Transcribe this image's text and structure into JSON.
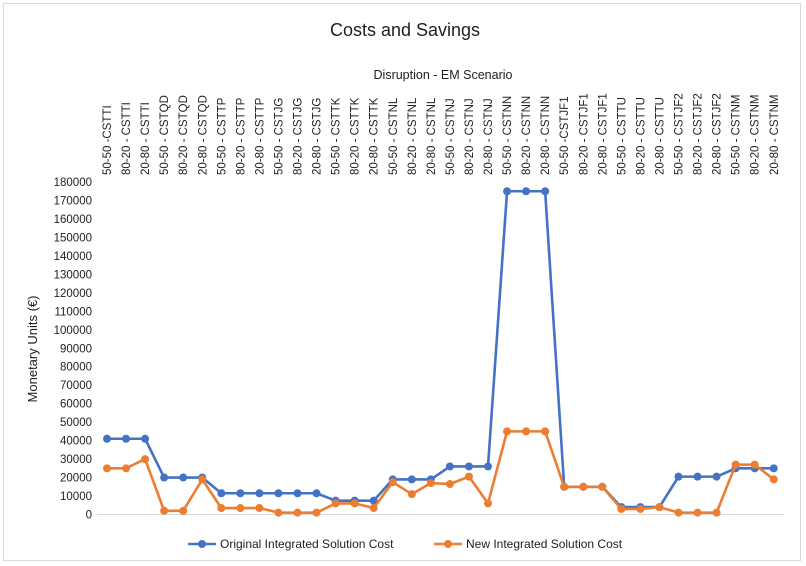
{
  "chart_data": {
    "type": "line",
    "title": "Costs and Savings",
    "subtitle": "Disruption - EM Scenario",
    "xlabel": "",
    "ylabel": "Monetary Units (€)",
    "ylim": [
      0,
      180000
    ],
    "ytick_step": 10000,
    "grid": false,
    "legend_position": "bottom",
    "categories": [
      "50-50 -CSTTI",
      "80-20 - CSTTI",
      "20-80 - CSTTI",
      "50-50 - CSTQD",
      "80-20 - CSTQD",
      "20-80 - CSTQD",
      "50-50 - CSTTP",
      "80-20 - CSTTP",
      "20-80 - CSTTP",
      "50-50 - CSTJG",
      "80-20 - CSTJG",
      "20-80 - CSTJG",
      "50-50 - CSTTK",
      "80-20 - CSTTK",
      "20-80 - CSTTK",
      "50-50 - CSTNL",
      "80-20 - CSTNL",
      "20-80 - CSTNL",
      "50-50 - CSTNJ",
      "80-20 - CSTNJ",
      "20-80 - CSTNJ",
      "50-50 - CSTNN",
      "80-20 - CSTNN",
      "20-80 - CSTNN",
      "50-50 -CSTJF1",
      "80-20 - CSTJF1",
      "20-80 - CSTJF1",
      "50-50 - CSTTU",
      "80-20 - CSTTU",
      "20-80 - CSTTU",
      "50-50 - CSTJF2",
      "80-20 - CSTJF2",
      "20-80 - CSTJF2",
      "50-50 - CSTNM",
      "80-20 - CSTNM",
      "20-80 - CSTNM"
    ],
    "series": [
      {
        "name": "Original Integrated Solution Cost",
        "color": "#4472c4",
        "values": [
          41000,
          41000,
          41000,
          20000,
          20000,
          20000,
          11500,
          11500,
          11500,
          11500,
          11500,
          11500,
          7500,
          7500,
          7500,
          19000,
          19000,
          19000,
          26000,
          26000,
          26000,
          175000,
          175000,
          175000,
          15000,
          15000,
          15000,
          4000,
          4000,
          4000,
          20500,
          20500,
          20500,
          25000,
          25000,
          25000
        ]
      },
      {
        "name": "New Integrated Solution Cost",
        "color": "#ed7d31",
        "values": [
          25000,
          25000,
          30000,
          2000,
          2000,
          19000,
          3500,
          3500,
          3500,
          1000,
          1000,
          1000,
          6000,
          6000,
          3500,
          17500,
          11000,
          17000,
          16500,
          20500,
          6000,
          45000,
          45000,
          45000,
          15000,
          15000,
          15000,
          3000,
          3000,
          4000,
          1000,
          1000,
          1000,
          27000,
          27000,
          19000
        ]
      }
    ]
  }
}
